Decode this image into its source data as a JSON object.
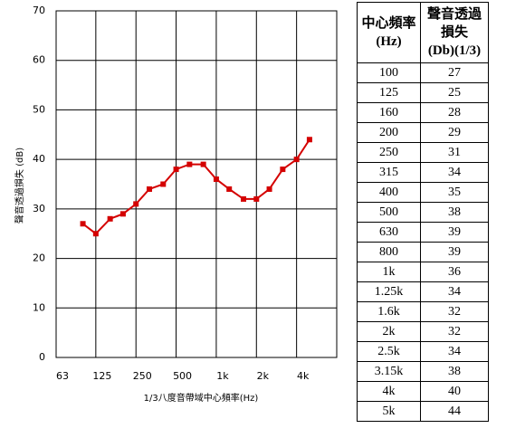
{
  "chart_data": {
    "type": "line",
    "x": [
      100,
      125,
      160,
      200,
      250,
      315,
      400,
      500,
      630,
      800,
      1000,
      1250,
      1600,
      2000,
      2500,
      3150,
      4000,
      5000
    ],
    "values": [
      27,
      25,
      28,
      29,
      31,
      34,
      35,
      38,
      39,
      39,
      36,
      34,
      32,
      32,
      34,
      38,
      40,
      44
    ],
    "color": "#d40000",
    "log_x": true,
    "grid": true,
    "xlim": [
      63,
      8000
    ],
    "xticks": [
      63,
      125,
      250,
      500,
      {
        "value": 1000,
        "label": "1k"
      },
      {
        "value": 2000,
        "label": "2k"
      },
      {
        "value": 4000,
        "label": "4k"
      }
    ],
    "ylim": [
      0,
      70
    ],
    "yticks": [
      0,
      10,
      20,
      30,
      40,
      50,
      60,
      70
    ],
    "xlabel": "1/3八度音帶域中心頻率(Hz)",
    "ylabel": "聲音透過損失 (dB)"
  },
  "table": {
    "header": [
      [
        "中心頻率",
        "(Hz)"
      ],
      [
        "聲音透過",
        "損失",
        "(Db)(1/3)"
      ]
    ],
    "rows": [
      [
        "100",
        "27"
      ],
      [
        "125",
        "25"
      ],
      [
        "160",
        "28"
      ],
      [
        "200",
        "29"
      ],
      [
        "250",
        "31"
      ],
      [
        "315",
        "34"
      ],
      [
        "400",
        "35"
      ],
      [
        "500",
        "38"
      ],
      [
        "630",
        "39"
      ],
      [
        "800",
        "39"
      ],
      [
        "1k",
        "36"
      ],
      [
        "1.25k",
        "34"
      ],
      [
        "1.6k",
        "32"
      ],
      [
        "2k",
        "32"
      ],
      [
        "2.5k",
        "34"
      ],
      [
        "3.15k",
        "38"
      ],
      [
        "4k",
        "40"
      ],
      [
        "5k",
        "44"
      ]
    ]
  }
}
